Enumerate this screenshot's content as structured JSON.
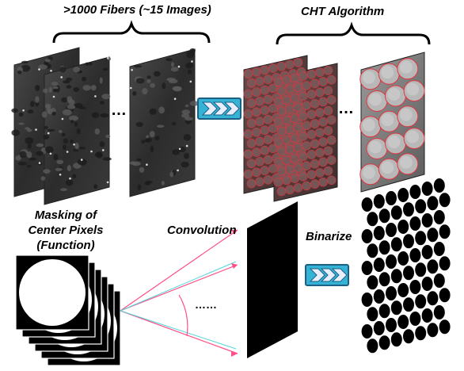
{
  "labels": {
    "fibers": ">1000 Fibers (~15 Images)",
    "cht": "CHT Algorithm",
    "masking_line1": "Masking of",
    "masking_line2": "Center Pixels",
    "masking_line3": "(Function)",
    "convolution": "Convolution",
    "binarize": "Binarize",
    "ellipsis_sem": "…",
    "ellipsis_cht": "…",
    "ellipsis_conv": "……"
  },
  "colors": {
    "arrow_border": "#1d5f85",
    "arrow_fill": "#35b3d5",
    "chevron_fill": "#e8eefc",
    "circle_outline": "#e0353f",
    "ray_pink": "#ff4f86",
    "ray_cyan": "#4fd6df"
  },
  "icons": {
    "process_arrow": "triple-chevron-arrow-icon"
  }
}
